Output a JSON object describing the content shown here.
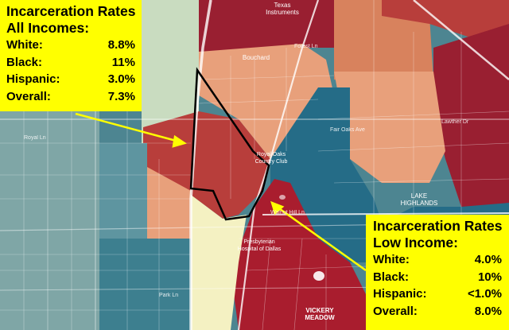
{
  "colors": {
    "teal_light": "#7fa6a6",
    "teal_mid": "#4d8591",
    "teal_dark": "#256c87",
    "peach": "#e8a07b",
    "orange": "#d8825d",
    "red": "#b83e3b",
    "dark_red": "#991f31",
    "crimson": "#a91d2e",
    "pale_yellow": "#f4f1c2",
    "light_green": "#c9dcc0",
    "callout": "#ffff00",
    "arrow": "#ffff00",
    "outline": "#000000"
  },
  "callout_all": {
    "title_1": "Incarceration Rates",
    "title_2": "All Incomes:",
    "rows": [
      {
        "label": "White:",
        "value": "8.8%"
      },
      {
        "label": "Black:",
        "value": "11%"
      },
      {
        "label": "Hispanic:",
        "value": "3.0%"
      },
      {
        "label": "Overall:",
        "value": "7.3%"
      }
    ]
  },
  "callout_low": {
    "title_1": "Incarceration Rates",
    "title_2": "Low Income:",
    "rows": [
      {
        "label": "White:",
        "value": "4.0%"
      },
      {
        "label": "Black:",
        "value": "10%"
      },
      {
        "label": "Hispanic:",
        "value": "<1.0%"
      },
      {
        "label": "Overall:",
        "value": "8.0%"
      }
    ]
  },
  "places": {
    "bouchard": "Bouchard",
    "lake_highlands": "LAKE\nHIGHLANDS",
    "presbyterian": "Presbyterian\nHospital of Dallas",
    "vickery": "VICKERY\nMEADOW",
    "texas_instruments": "Texas\nInstruments",
    "country_club": "Royal Oaks\nCountry Club"
  },
  "streets": {
    "royal": "Royal Ln",
    "walnut_hill": "Walnut Hill Ln",
    "forest": "Forest Ln",
    "lawther": "Lawther Dr",
    "fair_oaks": "Fair Oaks Ave",
    "park": "Park Ln"
  }
}
